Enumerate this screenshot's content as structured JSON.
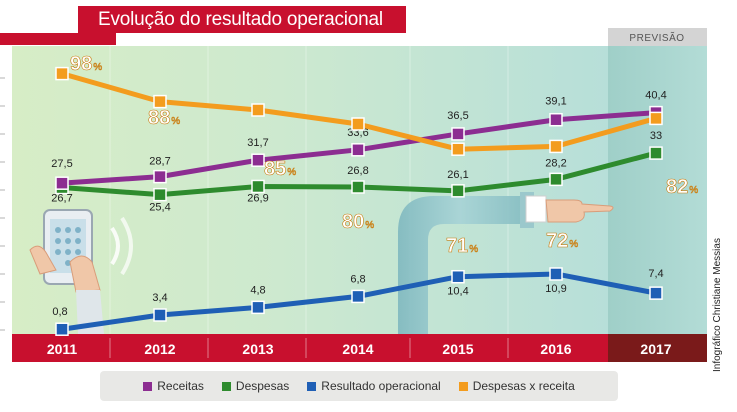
{
  "header": {
    "title": "Evolução do resultado operacional",
    "forecast_label": "PREVISÃO",
    "credit": "Infográfico Christiane Messias"
  },
  "colors": {
    "receitas": "#8c2d91",
    "despesas": "#2e8b2e",
    "resultado": "#1f5fb5",
    "ratio": "#f39c1e",
    "red": "#c8102e",
    "dark_red": "#7a1a1a"
  },
  "chart_data": {
    "type": "line",
    "title": "Evolução do resultado operacional",
    "categories": [
      "2011",
      "2012",
      "2013",
      "2014",
      "2015",
      "2016",
      "2017"
    ],
    "forecast_categories": [
      "2017"
    ],
    "xlabel": "",
    "ylabel": "",
    "series": [
      {
        "name": "Receitas",
        "key": "receitas",
        "values": [
          27.5,
          28.7,
          31.7,
          33.6,
          36.5,
          39.1,
          40.4
        ],
        "labels": [
          "27,5",
          "28,7",
          "31,7",
          "33,6",
          "36,5",
          "39,1",
          "40,4"
        ]
      },
      {
        "name": "Despesas",
        "key": "despesas",
        "values": [
          26.7,
          25.4,
          26.9,
          26.8,
          26.1,
          28.2,
          33
        ],
        "labels": [
          "26,7",
          "25,4",
          "26,9",
          "26,8",
          "26,1",
          "28,2",
          "33"
        ]
      },
      {
        "name": "Resultado operacional",
        "key": "resultado",
        "values": [
          0.8,
          3.4,
          4.8,
          6.8,
          10.4,
          10.9,
          7.4
        ],
        "labels": [
          "0,8",
          "3,4",
          "4,8",
          "6,8",
          "10,4",
          "10,9",
          "7,4"
        ]
      },
      {
        "name": "Despesas x receita",
        "key": "ratio",
        "values": [
          98,
          88,
          85,
          80,
          71,
          72,
          82
        ],
        "labels": [
          "98",
          "88",
          "85",
          "80",
          "71",
          "72",
          "82"
        ],
        "unit": "%"
      }
    ]
  },
  "legend": {
    "items": [
      {
        "label": "Receitas",
        "key": "receitas"
      },
      {
        "label": "Despesas",
        "key": "despesas"
      },
      {
        "label": "Resultado operacional",
        "key": "resultado"
      },
      {
        "label": "Despesas x receita",
        "key": "ratio"
      }
    ]
  }
}
